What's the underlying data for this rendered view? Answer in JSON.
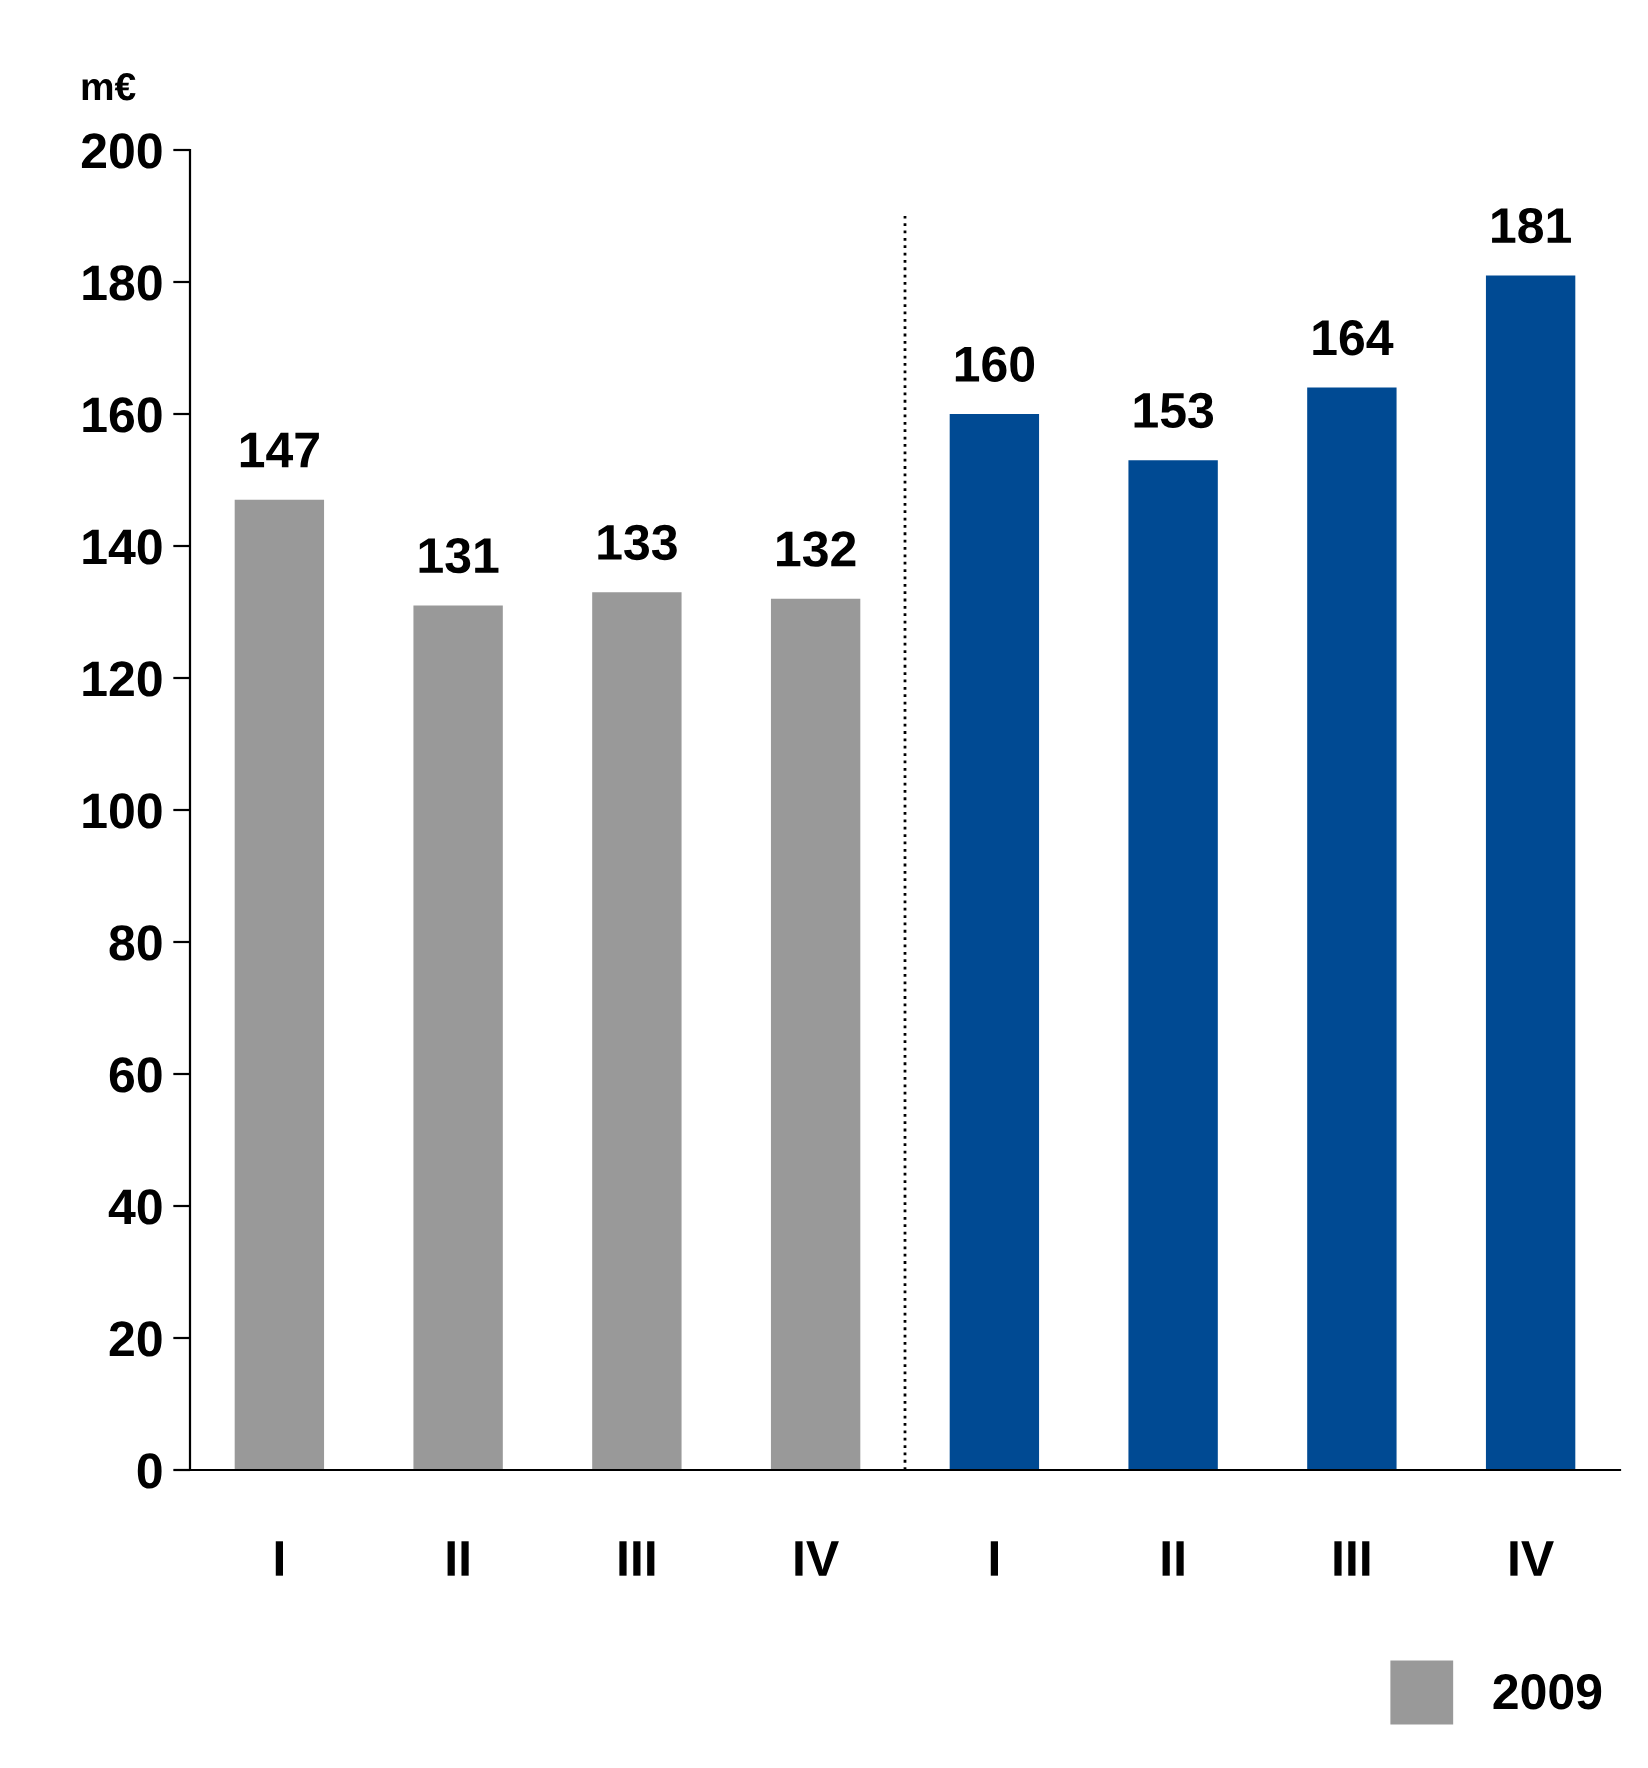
{
  "chart_data": {
    "type": "bar",
    "ylabel": "m€",
    "categories": [
      "I",
      "II",
      "III",
      "IV",
      "I",
      "II",
      "III",
      "IV"
    ],
    "series": [
      {
        "name": "2009",
        "color": "#999999",
        "values": [
          147,
          131,
          133,
          132,
          null,
          null,
          null,
          null
        ]
      },
      {
        "color": "#004a93",
        "values": [
          null,
          null,
          null,
          null,
          160,
          153,
          164,
          181
        ]
      }
    ],
    "ylim": [
      0,
      200
    ],
    "yticks": [
      0,
      20,
      40,
      60,
      80,
      100,
      120,
      140,
      160,
      180,
      200
    ],
    "data_labels": true,
    "grid": false,
    "legend": "bottom right"
  }
}
